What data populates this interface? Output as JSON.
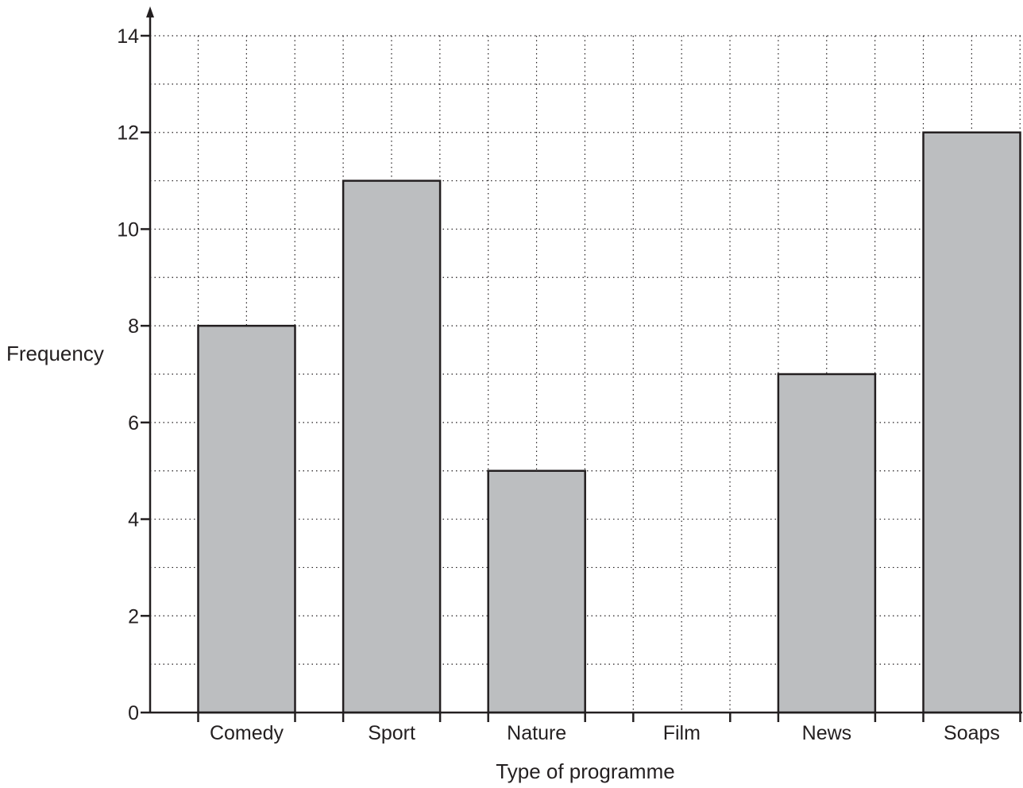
{
  "chart_data": {
    "type": "bar",
    "categories": [
      "Comedy",
      "Sport",
      "Nature",
      "Film",
      "News",
      "Soaps"
    ],
    "values": [
      8,
      11,
      5,
      0,
      7,
      12
    ],
    "xlabel": "Type of programme",
    "ylabel": "Frequency",
    "ylim": [
      0,
      14
    ],
    "yticks": [
      "0",
      "2",
      "4",
      "6",
      "8",
      "10",
      "12",
      "14"
    ],
    "grid": true,
    "legend": "none",
    "colors": {
      "bar_fill": "#bcbec0",
      "bar_stroke": "#231f20",
      "axis": "#231f20",
      "grid": "#231f20"
    }
  }
}
